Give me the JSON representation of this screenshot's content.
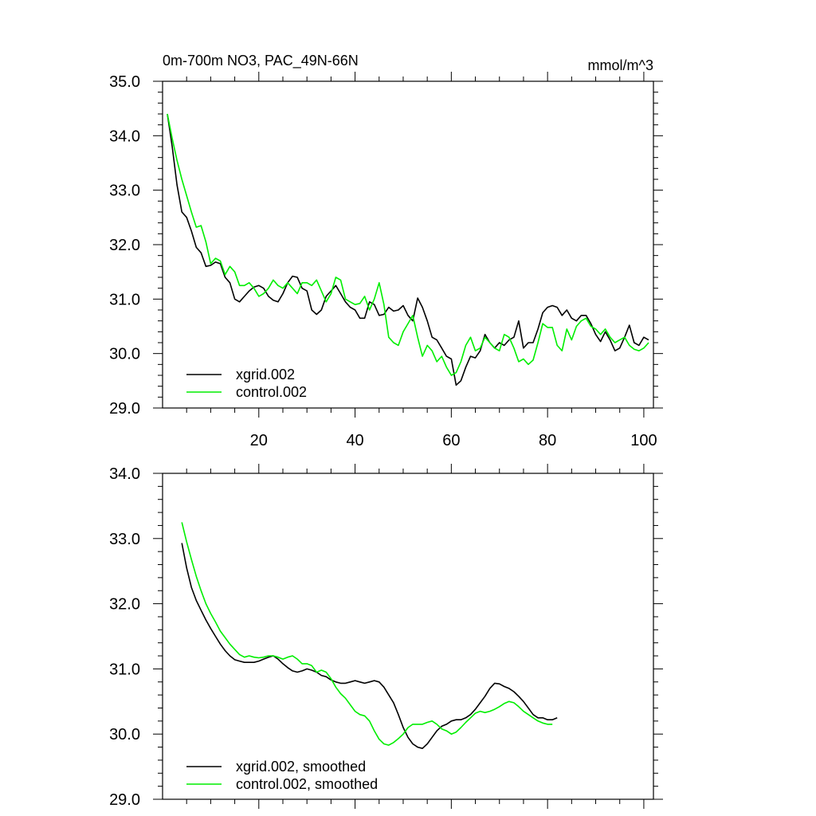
{
  "chart_data": [
    {
      "type": "line",
      "title": "0m-700m NO3, PAC_49N-66N",
      "units": "mmol/m^3",
      "xlim": [
        0,
        102
      ],
      "ylim": [
        29.0,
        35.0
      ],
      "xticks": [
        20,
        40,
        60,
        80,
        100
      ],
      "xtick_labels": [
        "20",
        "40",
        "60",
        "80",
        "100"
      ],
      "yticks": [
        29.0,
        30.0,
        31.0,
        32.0,
        33.0,
        34.0,
        35.0
      ],
      "ytick_labels": [
        "29.0",
        "30.0",
        "31.0",
        "32.0",
        "33.0",
        "34.0",
        "35.0"
      ],
      "legend_position": "bottom-left",
      "series": [
        {
          "name": "xgrid.002",
          "color": "#000000",
          "x_start": 1,
          "values": [
            34.4,
            33.8,
            33.1,
            32.6,
            32.5,
            32.25,
            31.95,
            31.85,
            31.6,
            31.62,
            31.68,
            31.65,
            31.4,
            31.3,
            31.0,
            30.95,
            31.05,
            31.15,
            31.22,
            31.25,
            31.2,
            31.05,
            30.98,
            30.95,
            31.1,
            31.3,
            31.42,
            31.4,
            31.2,
            31.15,
            30.8,
            30.72,
            30.8,
            31.05,
            31.15,
            31.25,
            31.1,
            30.95,
            30.85,
            30.8,
            30.65,
            30.65,
            30.95,
            30.9,
            30.7,
            30.72,
            30.85,
            30.78,
            30.8,
            30.88,
            30.7,
            30.6,
            31.02,
            30.85,
            30.6,
            30.3,
            30.25,
            30.1,
            29.95,
            29.9,
            29.42,
            29.5,
            29.75,
            29.95,
            29.92,
            30.05,
            30.35,
            30.2,
            30.1,
            30.2,
            30.15,
            30.25,
            30.3,
            30.6,
            30.1,
            30.2,
            30.2,
            30.45,
            30.75,
            30.85,
            30.88,
            30.85,
            30.7,
            30.8,
            30.65,
            30.6,
            30.7,
            30.7,
            30.55,
            30.35,
            30.22,
            30.4,
            30.25,
            30.05,
            30.1,
            30.3,
            30.52,
            30.2,
            30.15,
            30.3,
            30.25
          ]
        },
        {
          "name": "control.002",
          "color": "#00ee00",
          "x_start": 1,
          "values": [
            34.4,
            33.95,
            33.55,
            33.2,
            32.9,
            32.6,
            32.32,
            32.35,
            32.05,
            31.65,
            31.75,
            31.7,
            31.45,
            31.6,
            31.5,
            31.25,
            31.25,
            31.3,
            31.2,
            31.05,
            31.1,
            31.2,
            31.35,
            31.25,
            31.2,
            31.3,
            31.2,
            31.1,
            31.3,
            31.3,
            31.25,
            31.35,
            31.15,
            30.95,
            31.1,
            31.4,
            31.35,
            31.0,
            30.95,
            30.9,
            30.92,
            31.05,
            30.8,
            31.0,
            31.3,
            30.9,
            30.3,
            30.2,
            30.15,
            30.4,
            30.55,
            30.7,
            30.3,
            29.95,
            30.15,
            30.05,
            29.85,
            29.95,
            29.75,
            29.6,
            29.65,
            29.85,
            30.15,
            30.3,
            30.05,
            30.1,
            30.3,
            30.2,
            30.1,
            30.05,
            30.35,
            30.3,
            30.1,
            29.85,
            29.9,
            29.8,
            29.88,
            30.2,
            30.55,
            30.48,
            30.48,
            30.15,
            30.05,
            30.45,
            30.25,
            30.5,
            30.6,
            30.65,
            30.5,
            30.45,
            30.35,
            30.45,
            30.3,
            30.2,
            30.25,
            30.3,
            30.15,
            30.08,
            30.05,
            30.1,
            30.2
          ]
        }
      ]
    },
    {
      "type": "line",
      "title": "",
      "units": "",
      "xlim": [
        0,
        102
      ],
      "ylim": [
        29.0,
        34.0
      ],
      "xticks": [
        20,
        40,
        60,
        80,
        100
      ],
      "xtick_labels": [],
      "yticks": [
        29.0,
        30.0,
        31.0,
        32.0,
        33.0,
        34.0
      ],
      "ytick_labels": [
        "29.0",
        "30.0",
        "31.0",
        "32.0",
        "33.0",
        "34.0"
      ],
      "legend_position": "bottom-left",
      "series": [
        {
          "name": "xgrid.002, smoothed",
          "color": "#000000",
          "x_start": 4,
          "values": [
            32.93,
            32.55,
            32.25,
            32.05,
            31.9,
            31.75,
            31.62,
            31.5,
            31.38,
            31.28,
            31.2,
            31.14,
            31.12,
            31.1,
            31.1,
            31.1,
            31.12,
            31.15,
            31.18,
            31.2,
            31.15,
            31.08,
            31.02,
            30.97,
            30.95,
            30.97,
            31.0,
            30.98,
            30.95,
            30.9,
            30.88,
            30.83,
            30.8,
            30.78,
            30.78,
            30.8,
            30.82,
            30.8,
            30.78,
            30.8,
            30.82,
            30.8,
            30.72,
            30.6,
            30.48,
            30.3,
            30.1,
            29.95,
            29.85,
            29.8,
            29.78,
            29.85,
            29.95,
            30.05,
            30.12,
            30.15,
            30.2,
            30.22,
            30.22,
            30.25,
            30.3,
            30.38,
            30.48,
            30.58,
            30.7,
            30.78,
            30.77,
            30.73,
            30.7,
            30.65,
            30.58,
            30.5,
            30.4,
            30.3,
            30.25,
            30.25,
            30.22,
            30.22,
            30.25
          ]
        },
        {
          "name": "control.002, smoothed",
          "color": "#00ee00",
          "x_start": 4,
          "values": [
            33.25,
            32.95,
            32.68,
            32.42,
            32.2,
            32.0,
            31.85,
            31.72,
            31.58,
            31.48,
            31.38,
            31.3,
            31.22,
            31.18,
            31.2,
            31.18,
            31.17,
            31.18,
            31.2,
            31.2,
            31.18,
            31.15,
            31.18,
            31.2,
            31.15,
            31.08,
            31.08,
            31.05,
            30.95,
            30.98,
            30.95,
            30.85,
            30.72,
            30.62,
            30.55,
            30.45,
            30.35,
            30.3,
            30.28,
            30.2,
            30.05,
            29.92,
            29.85,
            29.83,
            29.87,
            29.93,
            30.0,
            30.1,
            30.15,
            30.15,
            30.15,
            30.18,
            30.2,
            30.15,
            30.08,
            30.05,
            30.0,
            30.03,
            30.1,
            30.18,
            30.25,
            30.32,
            30.35,
            30.33,
            30.35,
            30.38,
            30.42,
            30.47,
            30.5,
            30.48,
            30.42,
            30.35,
            30.3,
            30.25,
            30.2,
            30.17,
            30.15,
            30.15
          ]
        }
      ]
    }
  ]
}
